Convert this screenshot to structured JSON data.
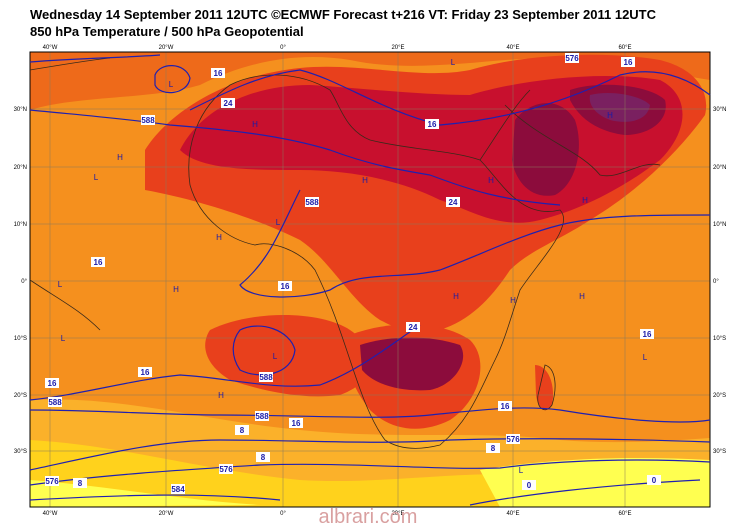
{
  "header": {
    "line1": "Wednesday 14 September 2011 12UTC ©ECMWF Forecast t+216 VT: Friday 23 September 2011 12UTC",
    "line2": "850 hPa Temperature / 500 hPa Geopotential"
  },
  "map": {
    "lon_labels": [
      "40°W",
      "20°W",
      "0°",
      "20°E",
      "40°E",
      "60°E"
    ],
    "lat_labels": [
      "30°N",
      "20°N",
      "10°N",
      "0°",
      "10°S",
      "20°S",
      "30°S"
    ],
    "contour_labels": [
      "16",
      "24",
      "588",
      "16",
      "588",
      "24",
      "16",
      "16",
      "24",
      "16",
      "16",
      "588",
      "16",
      "588",
      "588",
      "16",
      "16",
      "8",
      "576",
      "8",
      "8",
      "576",
      "8",
      "576",
      "584",
      "0",
      "0",
      "576",
      "16"
    ],
    "pressure_marks": [
      "L",
      "L",
      "H",
      "H",
      "H",
      "H",
      "H",
      "L",
      "H",
      "L",
      "H",
      "H",
      "H",
      "H",
      "L",
      "L",
      "L",
      "H",
      "L",
      "L",
      "H"
    ]
  },
  "watermark": "albrari.com"
}
